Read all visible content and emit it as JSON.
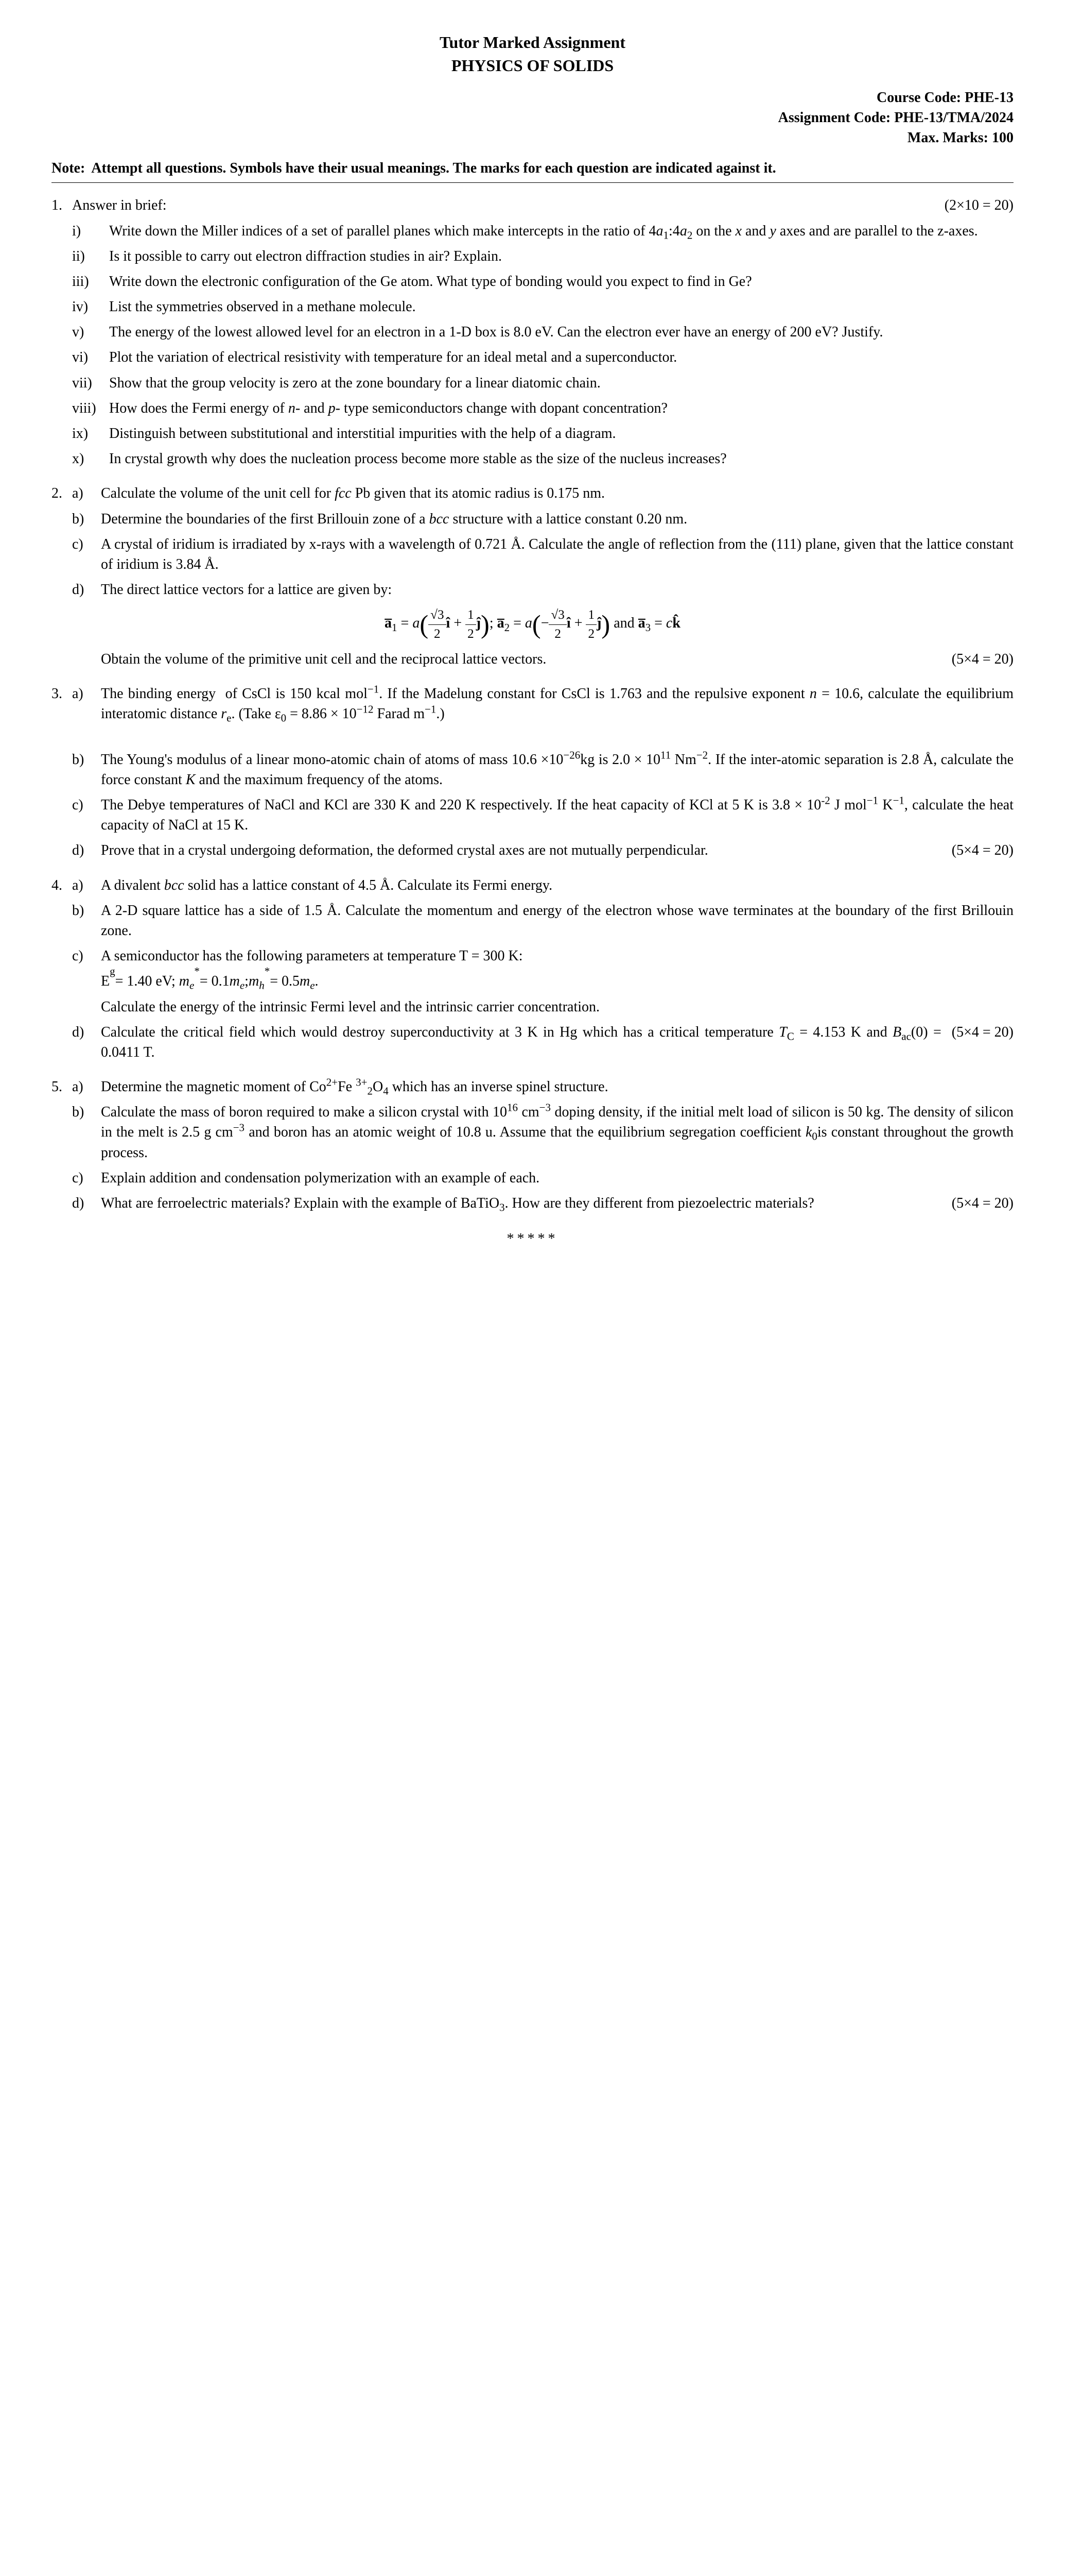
{
  "title": {
    "main": "Tutor Marked Assignment",
    "sub": "PHYSICS OF SOLIDS"
  },
  "meta": {
    "course_code": "Course Code: PHE-13",
    "assignment_code": "Assignment Code: PHE-13/TMA/2024",
    "max_marks": "Max. Marks: 100"
  },
  "note": {
    "label": "Note:",
    "text": "Attempt all questions. Symbols have their usual meanings. The marks for each question are indicated against it."
  },
  "q1": {
    "num": "1.",
    "intro": "Answer in brief:",
    "marks": "(2×10 = 20)",
    "items": {
      "i": {
        "label": "i)",
        "text": "Write down the Miller indices of a set of parallel planes which make intercepts in the ratio of 4a₁:4a₂ on the x and y axes and are parallel to the z-axes."
      },
      "ii": {
        "label": "ii)",
        "text": "Is it possible to carry out electron diffraction studies in air? Explain."
      },
      "iii": {
        "label": "iii)",
        "text": "Write down the electronic configuration of the Ge atom. What type of bonding would you expect to find in Ge?"
      },
      "iv": {
        "label": "iv)",
        "text": "List the symmetries observed in a methane molecule."
      },
      "v": {
        "label": "v)",
        "text": "The energy of the lowest allowed level for an electron in a 1-D box is 8.0 eV. Can the electron ever have an energy of 200 eV? Justify."
      },
      "vi": {
        "label": "vi)",
        "text": "Plot the variation of electrical resistivity with temperature for an ideal metal and a superconductor."
      },
      "vii": {
        "label": "vii)",
        "text": "Show that the group velocity is zero at the zone boundary for a linear diatomic chain."
      },
      "viii": {
        "label": "viii)",
        "text": "How does the Fermi energy of n- and p- type semiconductors change with dopant concentration?"
      },
      "ix": {
        "label": "ix)",
        "text": "Distinguish between substitutional and interstitial impurities with the help of a diagram."
      },
      "x": {
        "label": "x)",
        "text": "In crystal growth why does the nucleation process become more stable as the size of the nucleus increases?"
      }
    }
  },
  "q2": {
    "num": "2.",
    "a": {
      "label": "a)",
      "text": "Calculate the volume of the unit cell for fcc Pb given that its atomic radius is 0.175 nm."
    },
    "b": {
      "label": "b)",
      "text": "Determine the boundaries of the first Brillouin zone of a bcc structure with a lattice constant 0.20 nm."
    },
    "c": {
      "label": "c)",
      "text": "A crystal of iridium is irradiated by x-rays with a wavelength of 0.721 Å. Calculate the angle of reflection from the (111) plane, given that the lattice constant of iridium is 3.84 Å."
    },
    "d": {
      "label": "d)",
      "text_pre": "The direct lattice vectors for a lattice are given by:",
      "text_post": "Obtain the volume of the primitive unit cell and the reciprocal lattice vectors."
    },
    "marks": "(5×4 = 20)"
  },
  "q3": {
    "num": "3.",
    "a": {
      "label": "a)",
      "text": "The binding energy  of CsCl is 150 kcal mol⁻¹. If the Madelung constant for CsCl is 1.763 and the repulsive exponent n = 10.6, calculate the equilibrium interatomic distance rₑ. (Take ε₀ = 8.86 × 10⁻¹² Farad m⁻¹.)"
    },
    "b": {
      "label": "b)",
      "text": "The Young's modulus of a linear mono-atomic chain of atoms of mass 10.6 ×10⁻²⁶kg is 2.0 × 10¹¹ Nm⁻². If the inter-atomic separation is 2.8 Å, calculate the force constant K and the maximum frequency of the atoms."
    },
    "c": {
      "label": "c)",
      "text": "The Debye temperatures of NaCl and KCl are 330 K and 220 K respectively. If the heat capacity of KCl at 5 K is 3.8 × 10⁻² J mol⁻¹ K⁻¹, calculate the heat capacity of NaCl at 15 K."
    },
    "d": {
      "label": "d)",
      "text": "Prove that in a crystal undergoing deformation, the deformed crystal axes are not mutually perpendicular."
    },
    "marks": "(5×4 = 20)"
  },
  "q4": {
    "num": "4.",
    "a": {
      "label": "a)",
      "text": "A divalent bcc solid has a lattice constant of 4.5 Å. Calculate its Fermi energy."
    },
    "b": {
      "label": "b)",
      "text": "A 2-D square lattice has a side of 1.5 Å. Calculate the momentum and energy of the electron whose wave terminates at the boundary of the first Brillouin zone."
    },
    "c": {
      "label": "c)",
      "text_pre": "A semiconductor has the following parameters at temperature T = 300 K:",
      "eq": "Eg = 1.40 eV;  mₑ* = 0.1 mₑ ; mₕ* = 0.5 mₑ.",
      "text_post": "Calculate the energy of the intrinsic Fermi level and the intrinsic carrier concentration."
    },
    "d": {
      "label": "d)",
      "text": "Calculate the critical field which would destroy superconductivity at 3 K in Hg which has a critical temperature T_C = 4.153 K and Bₐc(0) = 0.0411 T."
    },
    "marks": "(5×4 = 20)"
  },
  "q5": {
    "num": "5.",
    "a": {
      "label": "a)",
      "text": "Determine the magnetic moment of Co²⁺Fe ³⁺₂O₄ which has an inverse spinel structure."
    },
    "b": {
      "label": "b)",
      "text": "Calculate the mass of boron required to make a silicon crystal with 10¹⁶ cm⁻³ doping density, if the initial melt load of silicon is 50 kg. The density of silicon in the melt is 2.5 g cm⁻³ and boron has an atomic weight of 10.8 u. Assume that the equilibrium segregation coefficient k₀is constant throughout the growth process."
    },
    "c": {
      "label": "c)",
      "text": "Explain addition and condensation polymerization with an example of each."
    },
    "d": {
      "label": "d)",
      "text": "What are ferroelectric materials? Explain with the example of BaTiO₃. How are they different from piezoelectric materials?"
    },
    "marks": "(5×4 = 20)"
  },
  "end": "*****"
}
